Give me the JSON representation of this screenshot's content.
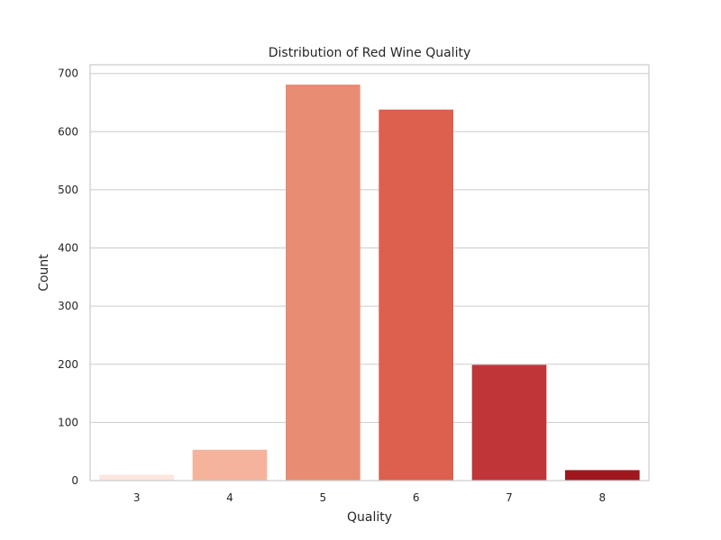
{
  "chart_data": {
    "type": "bar",
    "title": "Distribution of Red Wine Quality",
    "xlabel": "Quality",
    "ylabel": "Count",
    "categories": [
      "3",
      "4",
      "5",
      "6",
      "7",
      "8"
    ],
    "values": [
      10,
      53,
      681,
      638,
      199,
      18
    ],
    "ylim": [
      0,
      715
    ],
    "yticks": [
      0,
      100,
      200,
      300,
      400,
      500,
      600,
      700
    ],
    "grid": "horizontal",
    "colors": [
      "#fce6de",
      "#f4b39a",
      "#e88d73",
      "#dd5f4d",
      "#c03538",
      "#a0171e"
    ]
  }
}
